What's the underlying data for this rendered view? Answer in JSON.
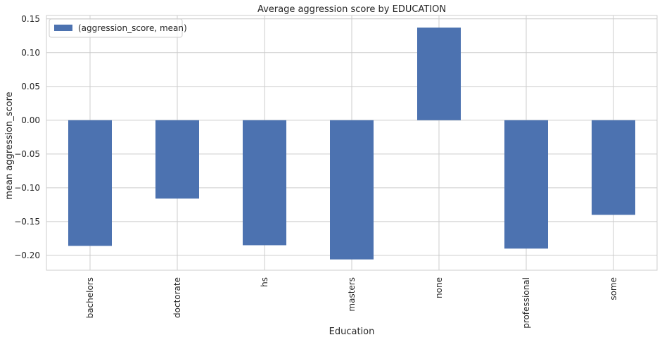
{
  "chart_data": {
    "type": "bar",
    "title": "Average aggression score by EDUCATION",
    "xlabel": "Education",
    "ylabel": "mean aggression_score",
    "categories": [
      "bachelors",
      "doctorate",
      "hs",
      "masters",
      "none",
      "professional",
      "some"
    ],
    "series": [
      {
        "name": "(aggression_score, mean)",
        "values": [
          -0.186,
          -0.116,
          -0.185,
          -0.206,
          0.137,
          -0.19,
          -0.14
        ]
      }
    ],
    "ylim": [
      -0.222,
      0.155
    ],
    "yticks": [
      0.15,
      0.1,
      0.05,
      0.0,
      -0.05,
      -0.1,
      -0.15,
      -0.2
    ],
    "ytick_labels": [
      "0.15",
      "0.10",
      "0.05",
      "0.00",
      "−0.05",
      "−0.10",
      "−0.15",
      "−0.20"
    ],
    "grid": true,
    "legend": "top-left",
    "colors": {
      "bar": "#4c72b0",
      "grid": "#cccccc",
      "frame": "#cccccc",
      "text": "#262626"
    }
  }
}
